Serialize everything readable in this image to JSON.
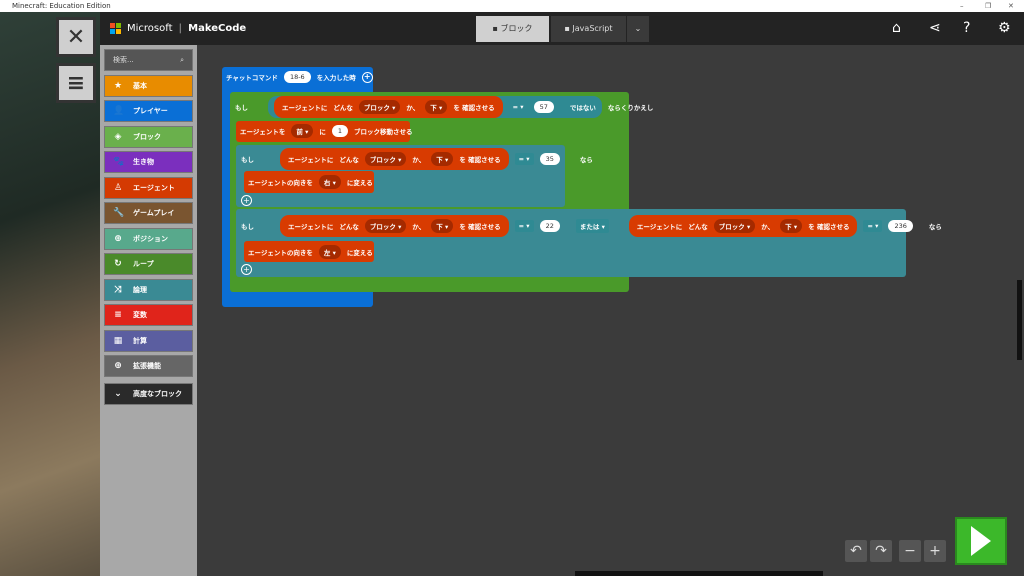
{
  "window": {
    "title": "Minecraft: Education Edition",
    "controls": [
      "–",
      "❐",
      "✕"
    ]
  },
  "header": {
    "brand": "Microsoft",
    "product": "MakeCode",
    "tabs": [
      {
        "label": "ブロック",
        "active": true
      },
      {
        "label": "JavaScript",
        "active": false
      }
    ],
    "icons": [
      "home-icon",
      "share-icon",
      "help-icon",
      "gear-icon"
    ]
  },
  "toolbox": {
    "search_placeholder": "検索...",
    "categories": [
      {
        "label": "基本",
        "color": "#e88c00",
        "icon": "★"
      },
      {
        "label": "プレイヤー",
        "color": "#0a6fd6",
        "icon": "👤"
      },
      {
        "label": "ブロック",
        "color": "#6ab04c",
        "icon": "◈"
      },
      {
        "label": "生き物",
        "color": "#7b2fbe",
        "icon": "🐾"
      },
      {
        "label": "エージェント",
        "color": "#d43a02",
        "icon": "♙"
      },
      {
        "label": "ゲームプレイ",
        "color": "#7a5530",
        "icon": "🔧"
      },
      {
        "label": "ポジション",
        "color": "#58a98c",
        "icon": "⊕"
      },
      {
        "label": "ループ",
        "color": "#4a8a2a",
        "icon": "↻"
      },
      {
        "label": "論理",
        "color": "#3a8a94",
        "icon": "⤨"
      },
      {
        "label": "変数",
        "color": "#e0241b",
        "icon": "≡"
      },
      {
        "label": "計算",
        "color": "#5b5ea0",
        "icon": "▦"
      },
      {
        "label": "拡張機能",
        "color": "#666666",
        "icon": "⊕"
      }
    ],
    "advanced": "高度なブロック"
  },
  "blocks": {
    "event": {
      "label": "チャットコマンド",
      "value": "18-6",
      "suffix": "を入力した時"
    },
    "while": {
      "prefix": "もし",
      "agent_detect": "エージェントに",
      "what": "どんな",
      "kind": "ブロック",
      "ka": "か、",
      "dir": "下",
      "check": "を 確認させる",
      "op": "=",
      "value": "57",
      "not": "ではない",
      "suffix": "ならくりかえし"
    },
    "move": {
      "prefix": "エージェントを",
      "dir": "前",
      "ni": "に",
      "value": "1",
      "suffix": "ブロック移動させる"
    },
    "if1": {
      "prefix": "もし",
      "agent_detect": "エージェントに",
      "what": "どんな",
      "kind": "ブロック",
      "ka": "か、",
      "dir": "下",
      "check": "を 確認させる",
      "op": "=",
      "value": "35",
      "suffix": "なら"
    },
    "turn_right": {
      "prefix": "エージェントの向きを",
      "dir": "右",
      "suffix": "に変える"
    },
    "if2": {
      "prefix": "もし",
      "agent_detect": "エージェントに",
      "what": "どんな",
      "kind": "ブロック",
      "ka": "か、",
      "dir": "下",
      "check": "を 確認させる",
      "op": "=",
      "value": "22",
      "or": "または",
      "value2": "236",
      "suffix": "なら"
    },
    "turn_left": {
      "prefix": "エージェントの向きを",
      "dir": "左",
      "suffix": "に変える"
    }
  },
  "colors": {
    "event": "#0a6fd6",
    "loop": "#4a9a2a",
    "logic": "#3a8a94",
    "agent": "#d83b01",
    "workspace": "#3b3b3b"
  }
}
